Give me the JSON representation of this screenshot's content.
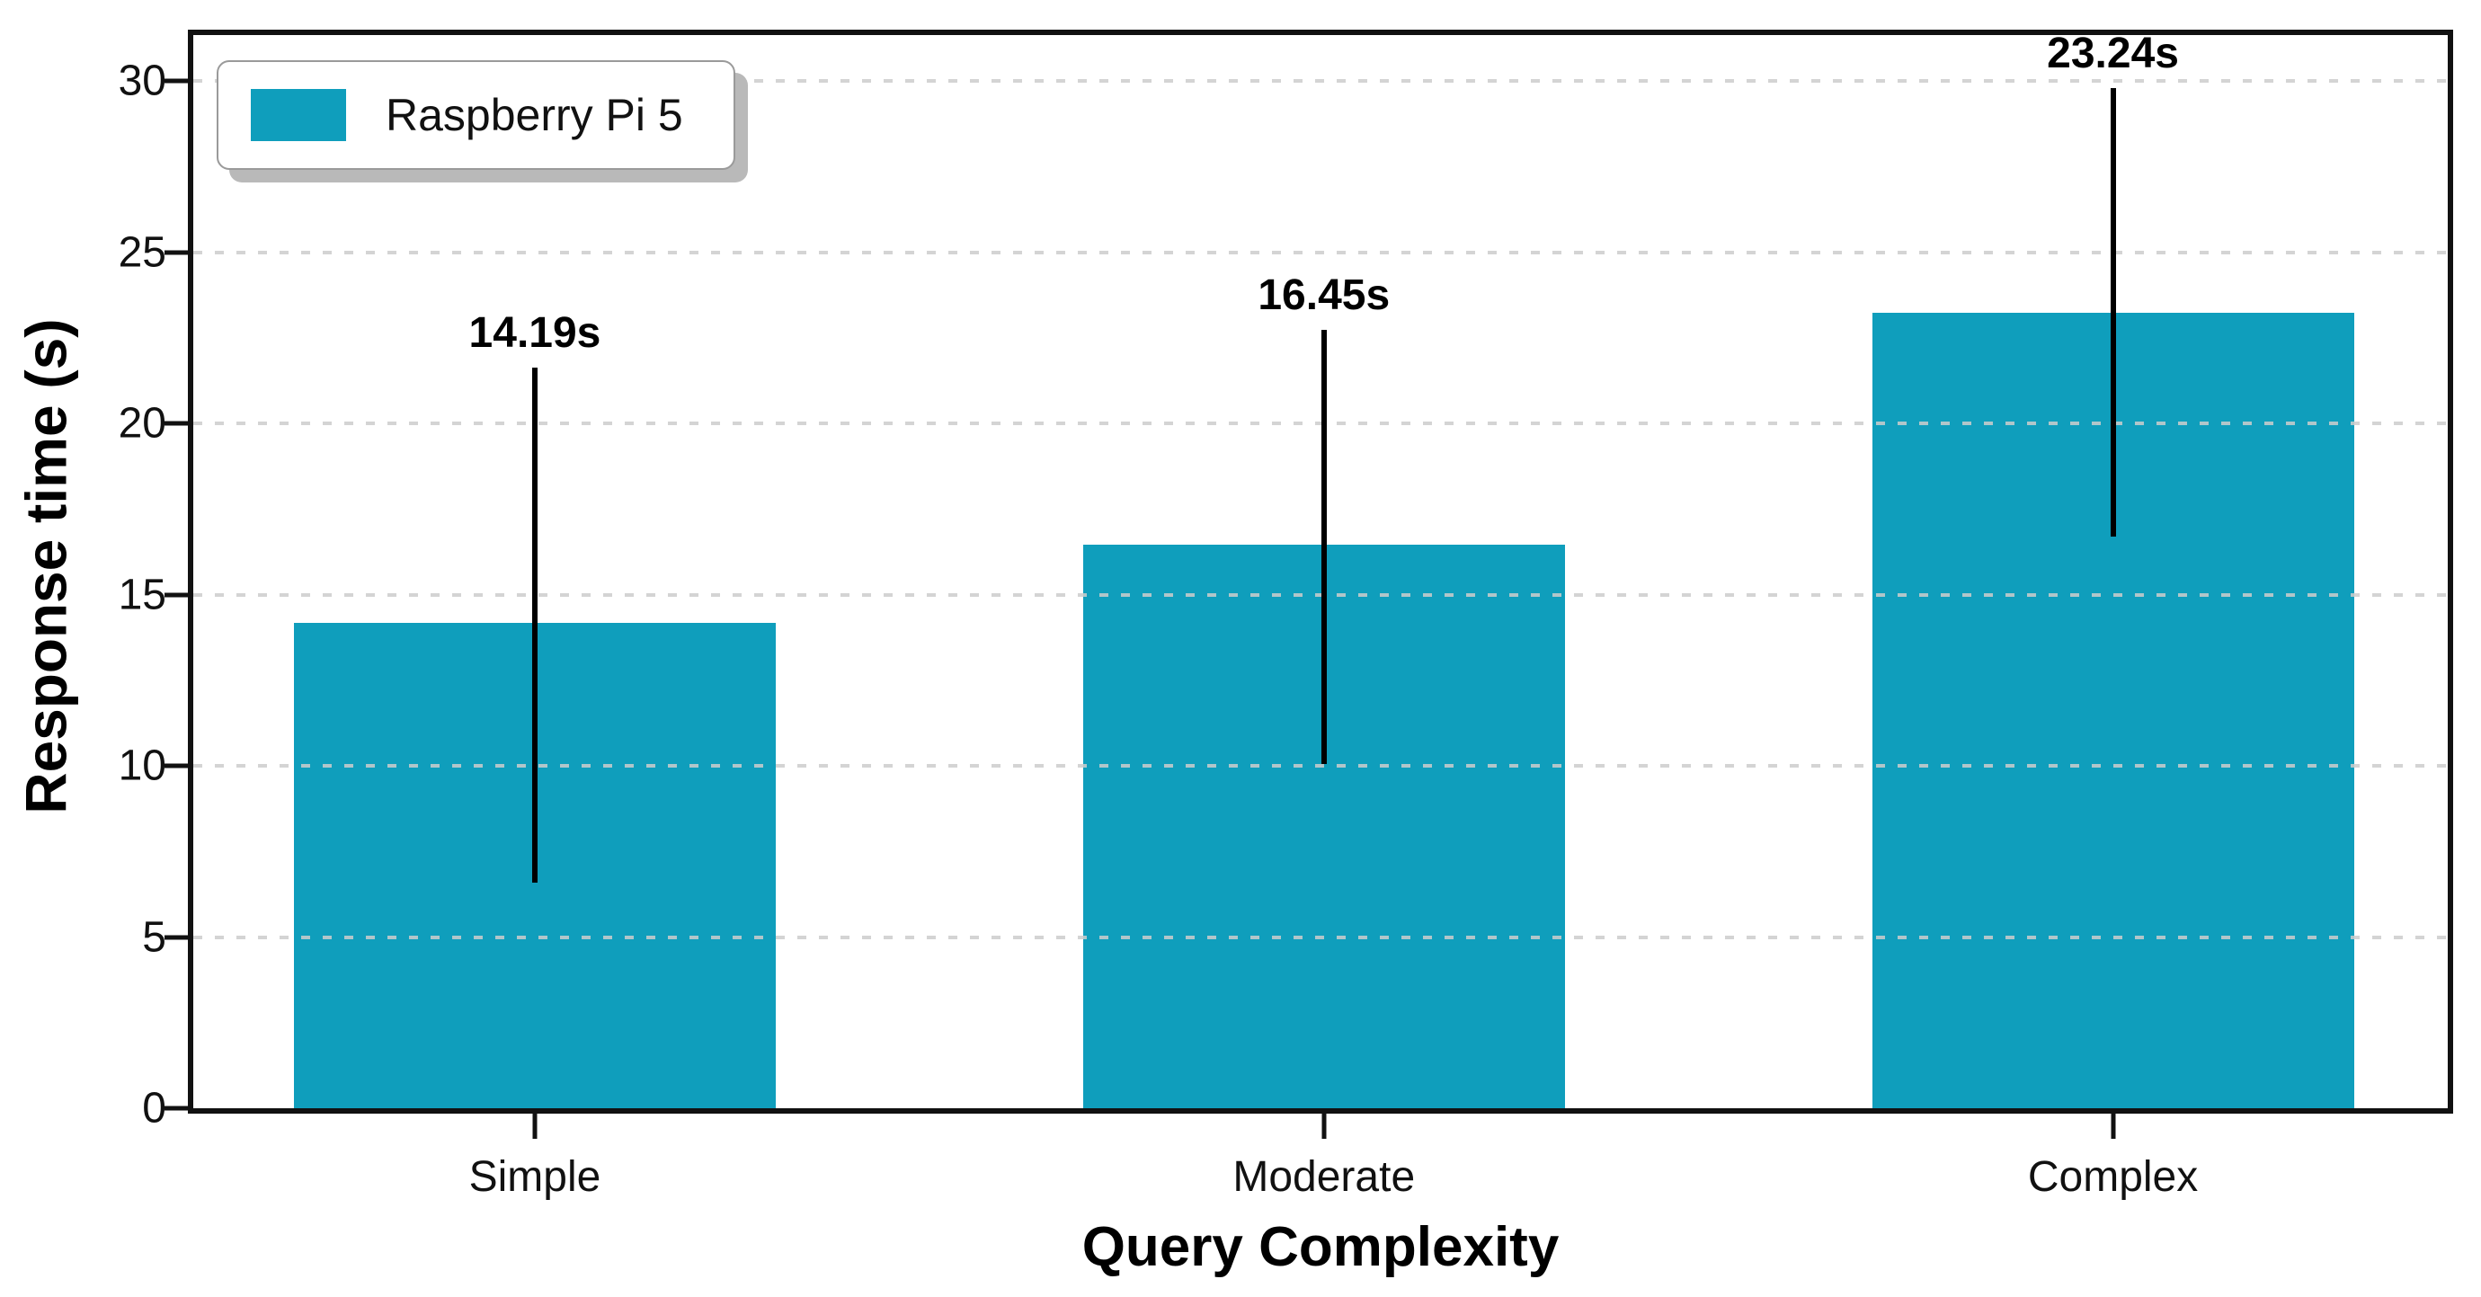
{
  "figure": {
    "background": "#ffffff"
  },
  "legend": {
    "label": "Raspberry Pi 5"
  },
  "chart_data": {
    "type": "bar",
    "title": "",
    "categories": [
      "Simple",
      "Moderate",
      "Complex"
    ],
    "series": [
      {
        "name": "Raspberry Pi 5",
        "color": "#0f9ebc",
        "values": [
          14.19,
          16.45,
          23.24
        ],
        "error_plus": [
          7.45,
          6.3,
          6.55
        ],
        "error_minus": [
          7.6,
          6.4,
          6.55
        ]
      }
    ],
    "bar_value_labels": [
      "14.19s",
      "16.45s",
      "23.24s"
    ],
    "xlabel": "Query Complexity",
    "ylabel": "Response time (s)",
    "ylim": [
      0,
      31.35
    ],
    "yticks": [
      0,
      5,
      10,
      15,
      20,
      25,
      30
    ],
    "ytick_labels": [
      "0",
      "5",
      "10",
      "15",
      "20",
      "25",
      "30"
    ],
    "grid": "horizontal dashed, drawn above bars",
    "grid_color": "#cdcdcd",
    "frame_color": "#111111",
    "error_bar_color": "#000000",
    "text_color": "#000000",
    "legend_position": "upper left"
  }
}
